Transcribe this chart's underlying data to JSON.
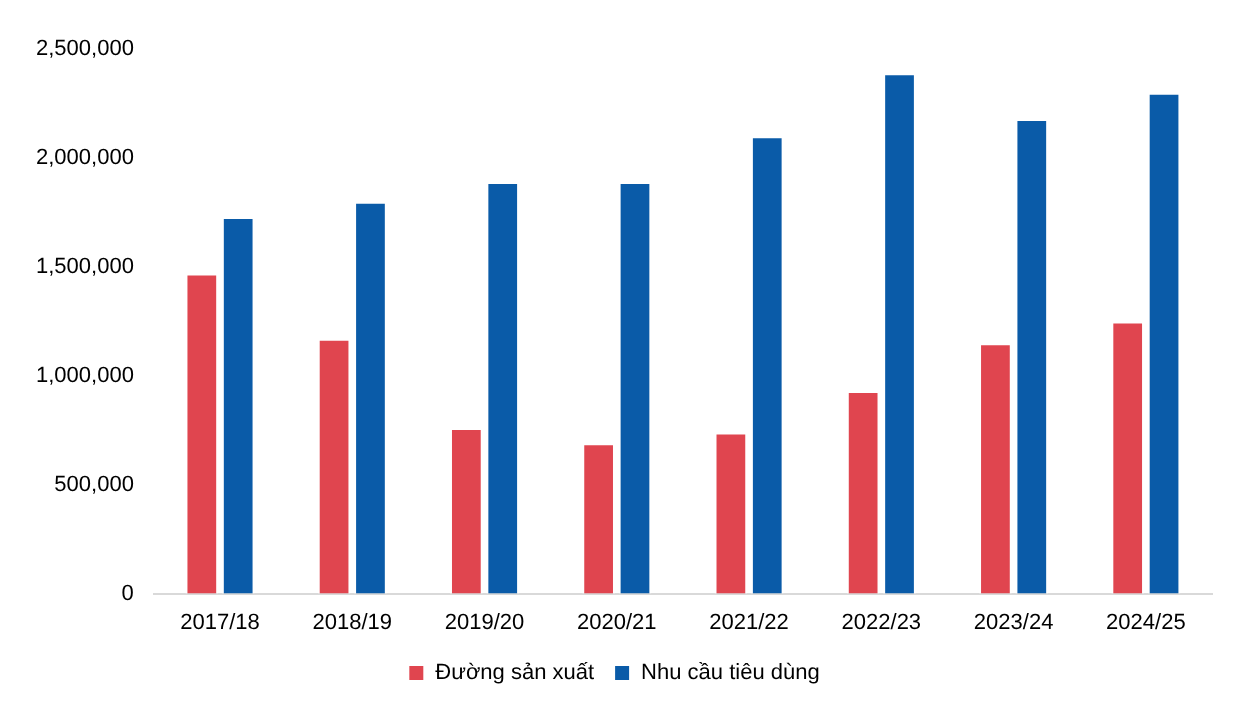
{
  "chart_data": {
    "type": "bar",
    "categories": [
      "2017/18",
      "2018/19",
      "2019/20",
      "2020/21",
      "2021/22",
      "2022/23",
      "2023/24",
      "2024/25"
    ],
    "series": [
      {
        "name": "Đường sản xuất",
        "color": "#e0454f",
        "values": [
          1470000,
          1170000,
          760000,
          690000,
          740000,
          930000,
          1150000,
          1250000
        ]
      },
      {
        "name": "Nhu cầu tiêu dùng",
        "color": "#0a5ba8",
        "values": [
          1730000,
          1800000,
          1890000,
          1890000,
          2100000,
          2390000,
          2180000,
          2300000
        ]
      }
    ],
    "ylim": [
      0,
      2500000
    ],
    "yticks": [
      {
        "value": 0,
        "label": "0"
      },
      {
        "value": 500000,
        "label": "500,000"
      },
      {
        "value": 1000000,
        "label": "1,000,000"
      },
      {
        "value": 1500000,
        "label": "1,500,000"
      },
      {
        "value": 2000000,
        "label": "2,000,000"
      },
      {
        "value": 2500000,
        "label": "2,500,000"
      }
    ],
    "grid": false,
    "legend": "bottom"
  }
}
